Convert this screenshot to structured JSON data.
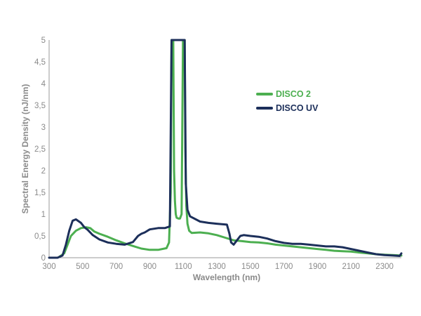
{
  "chart_data": {
    "type": "line",
    "xlabel": "Wavelength (nm)",
    "ylabel": "Spectral Energy  Density (nJ/nm)",
    "xlim": [
      300,
      2400
    ],
    "ylim": [
      0,
      5
    ],
    "x_ticks": [
      "300",
      "500",
      "700",
      "900",
      "1100",
      "1300",
      "1500",
      "1700",
      "1900",
      "2100",
      "2300"
    ],
    "y_ticks": [
      "0",
      "0,5",
      "1",
      "1,5",
      "2",
      "2,5",
      "3",
      "3,5",
      "4",
      "4,5",
      "5"
    ],
    "grid": false,
    "legend_position": "center-right",
    "series": [
      {
        "name": "DISCO 2",
        "color": "#4caf50",
        "points": [
          [
            360,
            0.02
          ],
          [
            390,
            0.1
          ],
          [
            410,
            0.3
          ],
          [
            430,
            0.5
          ],
          [
            460,
            0.62
          ],
          [
            490,
            0.68
          ],
          [
            520,
            0.7
          ],
          [
            545,
            0.68
          ],
          [
            570,
            0.6
          ],
          [
            600,
            0.55
          ],
          [
            650,
            0.48
          ],
          [
            700,
            0.4
          ],
          [
            750,
            0.33
          ],
          [
            800,
            0.27
          ],
          [
            850,
            0.21
          ],
          [
            900,
            0.18
          ],
          [
            950,
            0.18
          ],
          [
            1000,
            0.22
          ],
          [
            1015,
            0.35
          ],
          [
            1025,
            1.5
          ],
          [
            1030,
            5.0
          ],
          [
            1040,
            5.0
          ],
          [
            1045,
            2.0
          ],
          [
            1050,
            1.3
          ],
          [
            1055,
            1.0
          ],
          [
            1060,
            0.92
          ],
          [
            1070,
            0.9
          ],
          [
            1080,
            0.9
          ],
          [
            1090,
            1.0
          ],
          [
            1098,
            5.0
          ],
          [
            1108,
            5.0
          ],
          [
            1112,
            2.5
          ],
          [
            1118,
            1.2
          ],
          [
            1125,
            0.78
          ],
          [
            1135,
            0.62
          ],
          [
            1150,
            0.57
          ],
          [
            1200,
            0.58
          ],
          [
            1250,
            0.56
          ],
          [
            1300,
            0.52
          ],
          [
            1350,
            0.46
          ],
          [
            1400,
            0.4
          ],
          [
            1450,
            0.38
          ],
          [
            1500,
            0.36
          ],
          [
            1550,
            0.35
          ],
          [
            1600,
            0.33
          ],
          [
            1650,
            0.3
          ],
          [
            1700,
            0.28
          ],
          [
            1750,
            0.26
          ],
          [
            1800,
            0.24
          ],
          [
            1850,
            0.22
          ],
          [
            1900,
            0.2
          ],
          [
            1950,
            0.18
          ],
          [
            2000,
            0.16
          ],
          [
            2050,
            0.15
          ],
          [
            2100,
            0.14
          ],
          [
            2150,
            0.12
          ],
          [
            2200,
            0.1
          ],
          [
            2250,
            0.08
          ],
          [
            2300,
            0.07
          ],
          [
            2350,
            0.06
          ],
          [
            2400,
            0.05
          ]
        ]
      },
      {
        "name": "DISCO UV",
        "color": "#1c2f5a",
        "points": [
          [
            300,
            0.0
          ],
          [
            350,
            0.0
          ],
          [
            380,
            0.05
          ],
          [
            400,
            0.3
          ],
          [
            420,
            0.62
          ],
          [
            440,
            0.85
          ],
          [
            460,
            0.88
          ],
          [
            490,
            0.8
          ],
          [
            510,
            0.7
          ],
          [
            530,
            0.64
          ],
          [
            560,
            0.52
          ],
          [
            600,
            0.42
          ],
          [
            650,
            0.35
          ],
          [
            700,
            0.32
          ],
          [
            750,
            0.3
          ],
          [
            800,
            0.36
          ],
          [
            830,
            0.5
          ],
          [
            850,
            0.55
          ],
          [
            870,
            0.58
          ],
          [
            900,
            0.65
          ],
          [
            950,
            0.68
          ],
          [
            990,
            0.68
          ],
          [
            1020,
            0.72
          ],
          [
            1030,
            5.0
          ],
          [
            1098,
            5.0
          ],
          [
            1108,
            5.0
          ],
          [
            1115,
            1.7
          ],
          [
            1125,
            1.1
          ],
          [
            1140,
            0.95
          ],
          [
            1200,
            0.83
          ],
          [
            1250,
            0.8
          ],
          [
            1300,
            0.78
          ],
          [
            1360,
            0.76
          ],
          [
            1375,
            0.55
          ],
          [
            1385,
            0.35
          ],
          [
            1400,
            0.3
          ],
          [
            1420,
            0.4
          ],
          [
            1440,
            0.5
          ],
          [
            1460,
            0.52
          ],
          [
            1500,
            0.5
          ],
          [
            1550,
            0.48
          ],
          [
            1600,
            0.44
          ],
          [
            1650,
            0.38
          ],
          [
            1700,
            0.34
          ],
          [
            1750,
            0.32
          ],
          [
            1800,
            0.32
          ],
          [
            1850,
            0.3
          ],
          [
            1900,
            0.28
          ],
          [
            1950,
            0.26
          ],
          [
            2000,
            0.26
          ],
          [
            2050,
            0.24
          ],
          [
            2100,
            0.2
          ],
          [
            2150,
            0.16
          ],
          [
            2200,
            0.12
          ],
          [
            2250,
            0.08
          ],
          [
            2300,
            0.06
          ],
          [
            2350,
            0.05
          ],
          [
            2390,
            0.04
          ],
          [
            2400,
            0.1
          ]
        ]
      }
    ]
  }
}
